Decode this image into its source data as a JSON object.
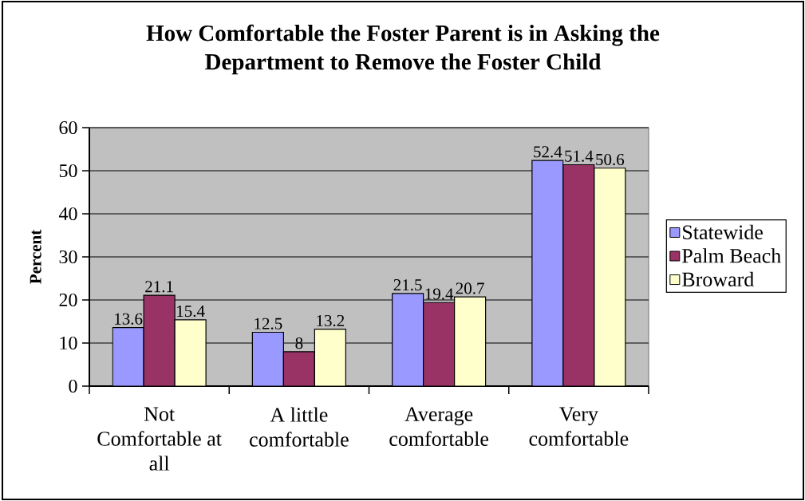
{
  "chart_data": {
    "type": "bar",
    "title": "How Comfortable the Foster Parent is in Asking the Department to Remove the Foster Child",
    "ylabel": "Percent",
    "categories": [
      "Not Comfortable at all",
      "A little comfortable",
      "Average comfortable",
      "Very comfortable"
    ],
    "series": [
      {
        "name": "Statewide",
        "color": "#9999ff",
        "values": [
          13.6,
          12.5,
          21.5,
          52.4
        ]
      },
      {
        "name": "Palm Beach",
        "color": "#993366",
        "values": [
          21.1,
          8,
          19.4,
          51.4
        ]
      },
      {
        "name": "Broward",
        "color": "#ffffcc",
        "values": [
          15.4,
          13.2,
          20.7,
          50.6
        ]
      }
    ],
    "ylim": [
      0,
      60
    ],
    "yticks": [
      0,
      10,
      20,
      30,
      40,
      50,
      60
    ],
    "grid": "y",
    "legend": "right",
    "data_labels": true
  }
}
